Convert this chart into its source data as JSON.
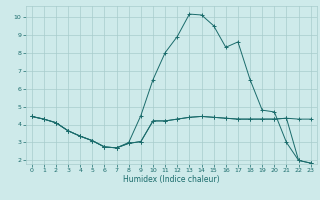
{
  "background_color": "#ceeaea",
  "grid_color": "#a8cccc",
  "line_color": "#1a6b6b",
  "marker": "+",
  "xlabel": "Humidex (Indice chaleur)",
  "xlim": [
    -0.5,
    23.5
  ],
  "ylim": [
    1.8,
    10.6
  ],
  "yticks": [
    2,
    3,
    4,
    5,
    6,
    7,
    8,
    9,
    10
  ],
  "xticks": [
    0,
    1,
    2,
    3,
    4,
    5,
    6,
    7,
    8,
    9,
    10,
    11,
    12,
    13,
    14,
    15,
    16,
    17,
    18,
    19,
    20,
    21,
    22,
    23
  ],
  "line1_x": [
    0,
    1,
    2,
    3,
    4,
    5,
    6,
    7,
    8,
    9,
    10,
    11,
    12,
    13,
    14,
    15,
    16,
    17,
    18,
    19,
    20,
    21,
    22,
    23
  ],
  "line1_y": [
    4.45,
    4.3,
    4.1,
    3.65,
    3.35,
    3.1,
    2.75,
    2.7,
    2.95,
    3.05,
    4.2,
    4.2,
    4.3,
    4.4,
    4.45,
    4.4,
    4.35,
    4.3,
    4.3,
    4.3,
    4.3,
    4.35,
    4.3,
    4.3
  ],
  "line2_x": [
    0,
    1,
    2,
    3,
    4,
    5,
    6,
    7,
    8,
    9,
    10,
    11,
    12,
    13,
    14,
    15,
    16,
    17,
    18,
    19,
    20,
    21,
    22,
    23
  ],
  "line2_y": [
    4.45,
    4.3,
    4.1,
    3.65,
    3.35,
    3.1,
    2.75,
    2.7,
    3.0,
    4.5,
    6.5,
    8.0,
    8.9,
    10.15,
    10.1,
    9.5,
    8.3,
    8.6,
    6.5,
    4.8,
    4.7,
    3.0,
    2.0,
    1.85
  ],
  "line3_x": [
    0,
    1,
    2,
    3,
    4,
    5,
    6,
    7,
    8,
    9,
    10,
    11,
    12,
    13,
    14,
    15,
    16,
    17,
    18,
    19,
    20,
    21,
    22,
    23
  ],
  "line3_y": [
    4.45,
    4.3,
    4.1,
    3.65,
    3.35,
    3.1,
    2.75,
    2.7,
    2.95,
    3.05,
    4.2,
    4.2,
    4.3,
    4.4,
    4.45,
    4.4,
    4.35,
    4.3,
    4.3,
    4.3,
    4.3,
    4.35,
    2.0,
    1.85
  ]
}
